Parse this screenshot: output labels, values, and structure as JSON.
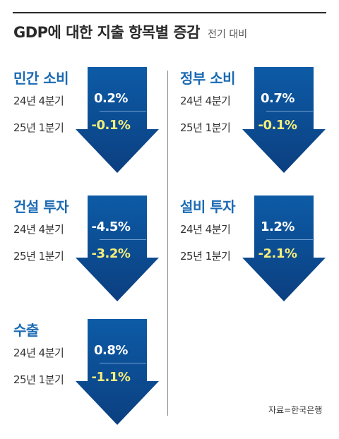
{
  "header": {
    "title": "GDP에 대한 지출 항목별 증감",
    "subtitle": "전기 대비"
  },
  "source": "자료=한국은행",
  "colors": {
    "arrow_top": "#0d5ba6",
    "arrow_bottom": "#0b3f80",
    "panel_title": "#1a6ab3",
    "previous_quarter_value": "#ffffff",
    "latest_quarter_value": "#f5ee7a"
  },
  "chart_data": [
    {
      "type": "table",
      "title": "민간 소비",
      "categories": [
        "24년 4분기",
        "25년 1분기"
      ],
      "values": [
        0.2,
        -0.1
      ],
      "labels": [
        "0.2%",
        "-0.1%"
      ]
    },
    {
      "type": "table",
      "title": "정부 소비",
      "categories": [
        "24년 4분기",
        "25년 1분기"
      ],
      "values": [
        0.7,
        -0.1
      ],
      "labels": [
        "0.7%",
        "-0.1%"
      ]
    },
    {
      "type": "table",
      "title": "건설 투자",
      "categories": [
        "24년 4분기",
        "25년 1분기"
      ],
      "values": [
        -4.5,
        -3.2
      ],
      "labels": [
        "-4.5%",
        "-3.2%"
      ]
    },
    {
      "type": "table",
      "title": "설비 투자",
      "categories": [
        "24년 4분기",
        "25년 1분기"
      ],
      "values": [
        1.2,
        -2.1
      ],
      "labels": [
        "1.2%",
        "-2.1%"
      ]
    },
    {
      "type": "table",
      "title": "수출",
      "categories": [
        "24년 4분기",
        "25년 1분기"
      ],
      "values": [
        0.8,
        -1.1
      ],
      "labels": [
        "0.8%",
        "-1.1%"
      ]
    }
  ]
}
